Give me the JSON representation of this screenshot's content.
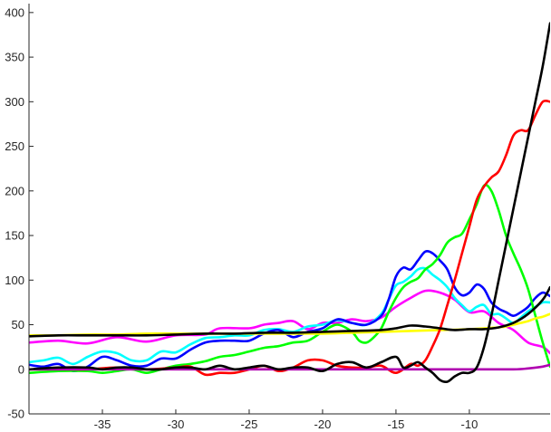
{
  "chart_data": {
    "type": "line",
    "title": "",
    "xlabel": "",
    "ylabel": "",
    "xlim": [
      -40,
      -4.5
    ],
    "ylim": [
      -50,
      410
    ],
    "xticks": [
      -35,
      -30,
      -25,
      -20,
      -15,
      -10
    ],
    "xtick_labels": [
      "-35",
      "-30",
      "-25",
      "-20",
      "-15",
      "-10"
    ],
    "yticks": [
      -50,
      0,
      50,
      100,
      150,
      200,
      250,
      300,
      350,
      400
    ],
    "ytick_labels": [
      "-50",
      "0",
      "50",
      "100",
      "150",
      "200",
      "250",
      "300",
      "350",
      "400"
    ],
    "grid": false,
    "legend": "none",
    "series": [
      {
        "name": "magenta",
        "color": "#ff00ff",
        "x": [
          -40,
          -38,
          -36,
          -34,
          -32,
          -30,
          -28,
          -27,
          -25,
          -24,
          -23,
          -22,
          -21,
          -20,
          -19,
          -18,
          -17,
          -16,
          -15,
          -14,
          -13,
          -12,
          -11,
          -10,
          -9,
          -8,
          -7,
          -6,
          -5,
          -4.5
        ],
        "y": [
          30,
          32,
          29,
          36,
          31,
          38,
          39,
          46,
          46,
          50,
          52,
          54,
          45,
          52,
          52,
          56,
          54,
          58,
          70,
          80,
          88,
          86,
          78,
          64,
          65,
          52,
          44,
          30,
          25,
          18
        ]
      },
      {
        "name": "cyan",
        "color": "#00ffff",
        "x": [
          -40,
          -39,
          -38,
          -37,
          -36,
          -35,
          -34,
          -33,
          -32,
          -31,
          -30,
          -29,
          -28,
          -27,
          -26,
          -25,
          -24,
          -23,
          -22,
          -21,
          -20,
          -19,
          -18,
          -17,
          -16,
          -15.5,
          -15,
          -14.5,
          -14,
          -13.5,
          -13,
          -12.5,
          -12,
          -11.5,
          -11,
          -10.5,
          -10,
          -9.5,
          -9,
          -8.5,
          -8,
          -7.5,
          -7,
          -6.5,
          -6,
          -5.5,
          -5,
          -4.5
        ],
        "y": [
          8,
          10,
          13,
          6,
          14,
          20,
          18,
          10,
          10,
          20,
          19,
          28,
          35,
          36,
          38,
          38,
          44,
          45,
          42,
          48,
          50,
          55,
          52,
          50,
          62,
          78,
          94,
          98,
          104,
          112,
          113,
          106,
          100,
          92,
          80,
          72,
          65,
          70,
          72,
          62,
          62,
          57,
          52,
          58,
          65,
          70,
          75,
          75
        ]
      },
      {
        "name": "blue",
        "color": "#0000ff",
        "x": [
          -40,
          -39,
          -38,
          -37,
          -36,
          -35,
          -34,
          -33,
          -32,
          -31,
          -30,
          -29,
          -28,
          -27,
          -26,
          -25,
          -24,
          -23,
          -22,
          -21,
          -20,
          -19,
          -18,
          -17,
          -16,
          -15.5,
          -15,
          -14.5,
          -14,
          -13.5,
          -13,
          -12.5,
          -12,
          -11.5,
          -11,
          -10.5,
          -10,
          -9.5,
          -9,
          -8.5,
          -8,
          -7.5,
          -7,
          -6.5,
          -6,
          -5.5,
          -5,
          -4.5
        ],
        "y": [
          5,
          3,
          6,
          -2,
          3,
          14,
          10,
          4,
          4,
          12,
          12,
          22,
          30,
          32,
          32,
          32,
          40,
          44,
          36,
          42,
          46,
          56,
          52,
          50,
          60,
          78,
          104,
          114,
          112,
          122,
          132,
          130,
          122,
          112,
          92,
          83,
          86,
          95,
          90,
          75,
          68,
          64,
          60,
          64,
          70,
          80,
          86,
          82
        ]
      },
      {
        "name": "green",
        "color": "#00ff00",
        "x": [
          -40,
          -38,
          -36,
          -35,
          -34,
          -33,
          -32,
          -31,
          -30,
          -29,
          -28,
          -27,
          -26,
          -25,
          -24,
          -23,
          -22,
          -21,
          -20,
          -19,
          -18,
          -17.5,
          -17,
          -16.5,
          -16,
          -15.5,
          -15,
          -14.5,
          -14,
          -13.5,
          -13,
          -12.5,
          -12,
          -11.5,
          -11,
          -10.5,
          -10,
          -9.5,
          -9,
          -8.5,
          -8,
          -7.5,
          -7,
          -6.5,
          -6,
          -5.5,
          -5,
          -4.5
        ],
        "y": [
          -4,
          -2,
          -2,
          -4,
          -2,
          0,
          -4,
          0,
          4,
          6,
          9,
          14,
          16,
          20,
          24,
          26,
          30,
          32,
          42,
          50,
          42,
          32,
          30,
          36,
          46,
          64,
          80,
          92,
          98,
          102,
          112,
          118,
          128,
          142,
          148,
          152,
          168,
          185,
          206,
          200,
          178,
          150,
          130,
          112,
          90,
          60,
          30,
          3
        ]
      },
      {
        "name": "yellow",
        "color": "#ffff00",
        "x": [
          -40,
          -38,
          -36,
          -34,
          -32,
          -30,
          -28,
          -26,
          -24,
          -22,
          -20,
          -18,
          -16,
          -14,
          -12,
          -10,
          -9,
          -8,
          -7.5,
          -7,
          -6.5,
          -6,
          -5.5,
          -5,
          -4.5
        ],
        "y": [
          38,
          38,
          39,
          39,
          40,
          40,
          40,
          40,
          40,
          40,
          40,
          41,
          42,
          43,
          44,
          45,
          46,
          47,
          48,
          50,
          52,
          54,
          57,
          59,
          62
        ]
      },
      {
        "name": "red",
        "color": "#ff0000",
        "x": [
          -40,
          -38,
          -36,
          -34,
          -32,
          -30,
          -29,
          -28,
          -27,
          -26,
          -25,
          -24,
          -23,
          -22,
          -21,
          -20,
          -19,
          -18,
          -17,
          -16,
          -15,
          -14,
          -13.5,
          -13,
          -12.5,
          -12,
          -11.5,
          -11,
          -10.5,
          -10,
          -9.5,
          -9,
          -8.5,
          -8,
          -7.5,
          -7,
          -6.5,
          -6,
          -5.5,
          -5,
          -4.5
        ],
        "y": [
          0,
          0,
          0,
          2,
          0,
          2,
          3,
          -6,
          -4,
          -4,
          0,
          4,
          -2,
          2,
          10,
          10,
          4,
          2,
          2,
          4,
          -4,
          6,
          4,
          10,
          26,
          45,
          72,
          100,
          130,
          160,
          190,
          205,
          215,
          222,
          240,
          262,
          268,
          268,
          285,
          300,
          300
        ]
      },
      {
        "name": "purple",
        "color": "#b000b0",
        "x": [
          -40,
          -20,
          -10,
          -7,
          -6,
          -5,
          -4.5
        ],
        "y": [
          0,
          0,
          0,
          0,
          1,
          3,
          5
        ]
      },
      {
        "name": "black-flat",
        "color": "#000000",
        "x": [
          -40,
          -38,
          -36,
          -34,
          -32,
          -30,
          -28,
          -26,
          -24,
          -22,
          -20,
          -18,
          -16,
          -15,
          -14,
          -13,
          -12,
          -11,
          -10,
          -9,
          -8,
          -7,
          -6,
          -5,
          -4.5
        ],
        "y": [
          37,
          38,
          38,
          38,
          38,
          39,
          40,
          40,
          41,
          41,
          42,
          43,
          44,
          46,
          49,
          48,
          46,
          44,
          45,
          45,
          47,
          52,
          62,
          78,
          92
        ]
      },
      {
        "name": "black-rising",
        "color": "#000000",
        "x": [
          -40,
          -38,
          -36,
          -35,
          -34,
          -33,
          -32,
          -31,
          -30,
          -29,
          -28,
          -27,
          -26,
          -25,
          -24,
          -23,
          -22,
          -21,
          -20,
          -19,
          -18,
          -17,
          -16,
          -15,
          -14.5,
          -14,
          -13.5,
          -13,
          -12.5,
          -12,
          -11.5,
          -11,
          -10.5,
          -10,
          -9.5,
          -9,
          -8.5,
          -8,
          -7.5,
          -7,
          -6.5,
          -6,
          -5.5,
          -5,
          -4.5
        ],
        "y": [
          0,
          2,
          2,
          0,
          2,
          2,
          0,
          0,
          2,
          2,
          0,
          4,
          0,
          2,
          4,
          0,
          2,
          2,
          -2,
          6,
          8,
          2,
          8,
          14,
          2,
          4,
          8,
          2,
          -4,
          -12,
          -14,
          -8,
          -4,
          -4,
          2,
          25,
          60,
          100,
          140,
          180,
          220,
          260,
          300,
          340,
          388
        ]
      }
    ]
  }
}
